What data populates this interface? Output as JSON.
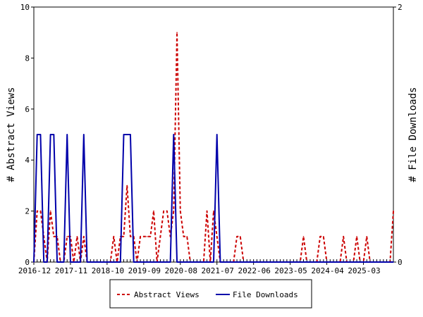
{
  "chart_data": {
    "type": "line",
    "title": "",
    "x_tick_labels": [
      "2016-12",
      "2017-11",
      "2018-10",
      "2019-09",
      "2020-08",
      "2021-07",
      "2022-06",
      "2023-05",
      "2024-04",
      "2025-03"
    ],
    "y_left": {
      "label": "# Abstract Views",
      "range": [
        0,
        10
      ],
      "ticks": [
        "0",
        "2",
        "4",
        "6",
        "8",
        "10"
      ]
    },
    "y_right": {
      "label": "# File Downloads",
      "range": [
        0,
        2
      ],
      "ticks": [
        "0",
        "2"
      ]
    },
    "x_range_months": [
      0,
      108
    ],
    "series": [
      {
        "name": "Abstract Views",
        "axis": "left",
        "color": "#cc0000",
        "style": "dashed",
        "points": [
          [
            0,
            0
          ],
          [
            1,
            2
          ],
          [
            2,
            2
          ],
          [
            3,
            1
          ],
          [
            4,
            0
          ],
          [
            5,
            2
          ],
          [
            6,
            1
          ],
          [
            7,
            1
          ],
          [
            8,
            0
          ],
          [
            9,
            0
          ],
          [
            10,
            1
          ],
          [
            11,
            1
          ],
          [
            12,
            0
          ],
          [
            13,
            1
          ],
          [
            14,
            0
          ],
          [
            15,
            1
          ],
          [
            16,
            0
          ],
          [
            17,
            0
          ],
          [
            18,
            0
          ],
          [
            19,
            0
          ],
          [
            20,
            0
          ],
          [
            21,
            0
          ],
          [
            22,
            0
          ],
          [
            23,
            0
          ],
          [
            24,
            1
          ],
          [
            25,
            0
          ],
          [
            26,
            1
          ],
          [
            27,
            1
          ],
          [
            28,
            3
          ],
          [
            29,
            1
          ],
          [
            30,
            1
          ],
          [
            31,
            0
          ],
          [
            32,
            1
          ],
          [
            33,
            1
          ],
          [
            34,
            1
          ],
          [
            35,
            1
          ],
          [
            36,
            2
          ],
          [
            37,
            0
          ],
          [
            38,
            1
          ],
          [
            39,
            2
          ],
          [
            40,
            2
          ],
          [
            41,
            1
          ],
          [
            42,
            2
          ],
          [
            43,
            9
          ],
          [
            44,
            2
          ],
          [
            45,
            1
          ],
          [
            46,
            1
          ],
          [
            47,
            0
          ],
          [
            48,
            0
          ],
          [
            49,
            0
          ],
          [
            50,
            0
          ],
          [
            51,
            0
          ],
          [
            52,
            2
          ],
          [
            53,
            0
          ],
          [
            54,
            2
          ],
          [
            55,
            1
          ],
          [
            56,
            0
          ],
          [
            57,
            0
          ],
          [
            58,
            0
          ],
          [
            59,
            0
          ],
          [
            60,
            0
          ],
          [
            61,
            1
          ],
          [
            62,
            1
          ],
          [
            63,
            0
          ],
          [
            64,
            0
          ],
          [
            65,
            0
          ],
          [
            66,
            0
          ],
          [
            67,
            0
          ],
          [
            68,
            0
          ],
          [
            69,
            0
          ],
          [
            70,
            0
          ],
          [
            71,
            0
          ],
          [
            72,
            0
          ],
          [
            73,
            0
          ],
          [
            74,
            0
          ],
          [
            75,
            0
          ],
          [
            76,
            0
          ],
          [
            77,
            0
          ],
          [
            78,
            0
          ],
          [
            79,
            0
          ],
          [
            80,
            0
          ],
          [
            81,
            1
          ],
          [
            82,
            0
          ],
          [
            83,
            0
          ],
          [
            84,
            0
          ],
          [
            85,
            0
          ],
          [
            86,
            1
          ],
          [
            87,
            1
          ],
          [
            88,
            0
          ],
          [
            89,
            0
          ],
          [
            90,
            0
          ],
          [
            91,
            0
          ],
          [
            92,
            0
          ],
          [
            93,
            1
          ],
          [
            94,
            0
          ],
          [
            95,
            0
          ],
          [
            96,
            0
          ],
          [
            97,
            1
          ],
          [
            98,
            0
          ],
          [
            99,
            0
          ],
          [
            100,
            1
          ],
          [
            101,
            0
          ],
          [
            102,
            0
          ],
          [
            103,
            0
          ],
          [
            104,
            0
          ],
          [
            105,
            0
          ],
          [
            106,
            0
          ],
          [
            107,
            0
          ],
          [
            108,
            2
          ]
        ]
      },
      {
        "name": "File Downloads",
        "axis": "right",
        "color": "#0000aa",
        "style": "solid",
        "points": [
          [
            0,
            0
          ],
          [
            1,
            1
          ],
          [
            2,
            1
          ],
          [
            3,
            0
          ],
          [
            4,
            0
          ],
          [
            5,
            1
          ],
          [
            6,
            1
          ],
          [
            7,
            0
          ],
          [
            8,
            0
          ],
          [
            9,
            0
          ],
          [
            10,
            1
          ],
          [
            11,
            0
          ],
          [
            12,
            0
          ],
          [
            13,
            0
          ],
          [
            14,
            0
          ],
          [
            15,
            1
          ],
          [
            16,
            0
          ],
          [
            17,
            0
          ],
          [
            18,
            0
          ],
          [
            19,
            0
          ],
          [
            20,
            0
          ],
          [
            21,
            0
          ],
          [
            22,
            0
          ],
          [
            23,
            0
          ],
          [
            24,
            0
          ],
          [
            25,
            0
          ],
          [
            26,
            0
          ],
          [
            27,
            1
          ],
          [
            28,
            1
          ],
          [
            29,
            1
          ],
          [
            30,
            0
          ],
          [
            31,
            0
          ],
          [
            32,
            0
          ],
          [
            33,
            0
          ],
          [
            34,
            0
          ],
          [
            35,
            0
          ],
          [
            36,
            0
          ],
          [
            37,
            0
          ],
          [
            38,
            0
          ],
          [
            39,
            0
          ],
          [
            40,
            0
          ],
          [
            41,
            0
          ],
          [
            42,
            1
          ],
          [
            43,
            0
          ],
          [
            44,
            0
          ],
          [
            45,
            0
          ],
          [
            46,
            0
          ],
          [
            47,
            0
          ],
          [
            48,
            0
          ],
          [
            49,
            0
          ],
          [
            50,
            0
          ],
          [
            51,
            0
          ],
          [
            52,
            0
          ],
          [
            53,
            0
          ],
          [
            54,
            0
          ],
          [
            55,
            1
          ],
          [
            56,
            0
          ],
          [
            57,
            0
          ],
          [
            58,
            0
          ],
          [
            59,
            0
          ],
          [
            60,
            0
          ],
          [
            61,
            0
          ],
          [
            62,
            0
          ],
          [
            63,
            0
          ],
          [
            64,
            0
          ],
          [
            65,
            0
          ],
          [
            66,
            0
          ],
          [
            67,
            0
          ],
          [
            68,
            0
          ],
          [
            69,
            0
          ],
          [
            70,
            0
          ],
          [
            71,
            0
          ],
          [
            72,
            0
          ],
          [
            73,
            0
          ],
          [
            74,
            0
          ],
          [
            75,
            0
          ],
          [
            76,
            0
          ],
          [
            77,
            0
          ],
          [
            78,
            0
          ],
          [
            79,
            0
          ],
          [
            80,
            0
          ],
          [
            81,
            0
          ],
          [
            82,
            0
          ],
          [
            83,
            0
          ],
          [
            84,
            0
          ],
          [
            85,
            0
          ],
          [
            86,
            0
          ],
          [
            87,
            0
          ],
          [
            88,
            0
          ],
          [
            89,
            0
          ],
          [
            90,
            0
          ],
          [
            91,
            0
          ],
          [
            92,
            0
          ],
          [
            93,
            0
          ],
          [
            94,
            0
          ],
          [
            95,
            0
          ],
          [
            96,
            0
          ],
          [
            97,
            0
          ],
          [
            98,
            0
          ],
          [
            99,
            0
          ],
          [
            100,
            0
          ],
          [
            101,
            0
          ],
          [
            102,
            0
          ],
          [
            103,
            0
          ],
          [
            104,
            0
          ],
          [
            105,
            0
          ],
          [
            106,
            0
          ],
          [
            107,
            0
          ],
          [
            108,
            0
          ]
        ]
      }
    ],
    "legend": {
      "placement": "bottom-center",
      "entries": [
        "Abstract Views",
        "File Downloads"
      ]
    },
    "grid": false
  }
}
